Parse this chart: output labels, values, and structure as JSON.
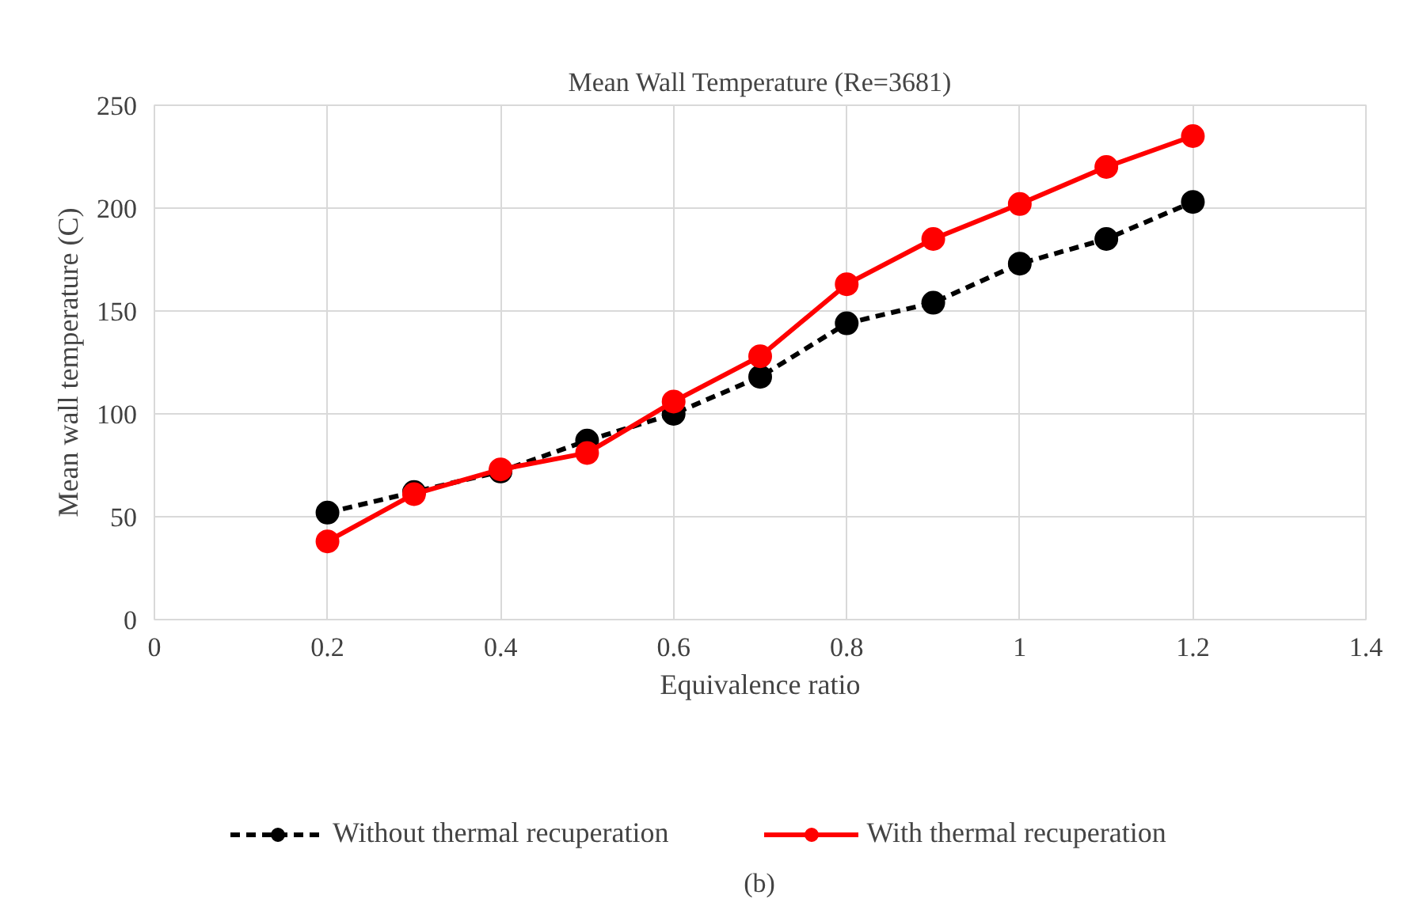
{
  "chart_data": {
    "type": "line",
    "title": "Mean Wall Temperature (Re=3681)",
    "xlabel": "Equivalence ratio",
    "ylabel": "Mean wall temperature (C)",
    "x": [
      0.2,
      0.3,
      0.4,
      0.5,
      0.6,
      0.7,
      0.8,
      0.9,
      1.0,
      1.1,
      1.2
    ],
    "series": [
      {
        "name": "Without thermal recuperation",
        "color": "#000000",
        "line_style": "dashed",
        "values": [
          52,
          62,
          72,
          87,
          100,
          118,
          144,
          154,
          173,
          185,
          203
        ]
      },
      {
        "name": "With thermal recuperation",
        "color": "#ff0000",
        "line_style": "solid",
        "values": [
          38,
          61,
          73,
          81,
          106,
          128,
          163,
          185,
          202,
          220,
          235
        ]
      }
    ],
    "xlim": [
      0,
      1.4
    ],
    "xticks": [
      0,
      0.2,
      0.4,
      0.6,
      0.8,
      1,
      1.2,
      1.4
    ],
    "ylim": [
      0,
      250
    ],
    "yticks": [
      0,
      50,
      100,
      150,
      200,
      250
    ],
    "grid": true,
    "legend": "bottom",
    "marker": "circle",
    "annotations": [
      "(b)"
    ]
  }
}
